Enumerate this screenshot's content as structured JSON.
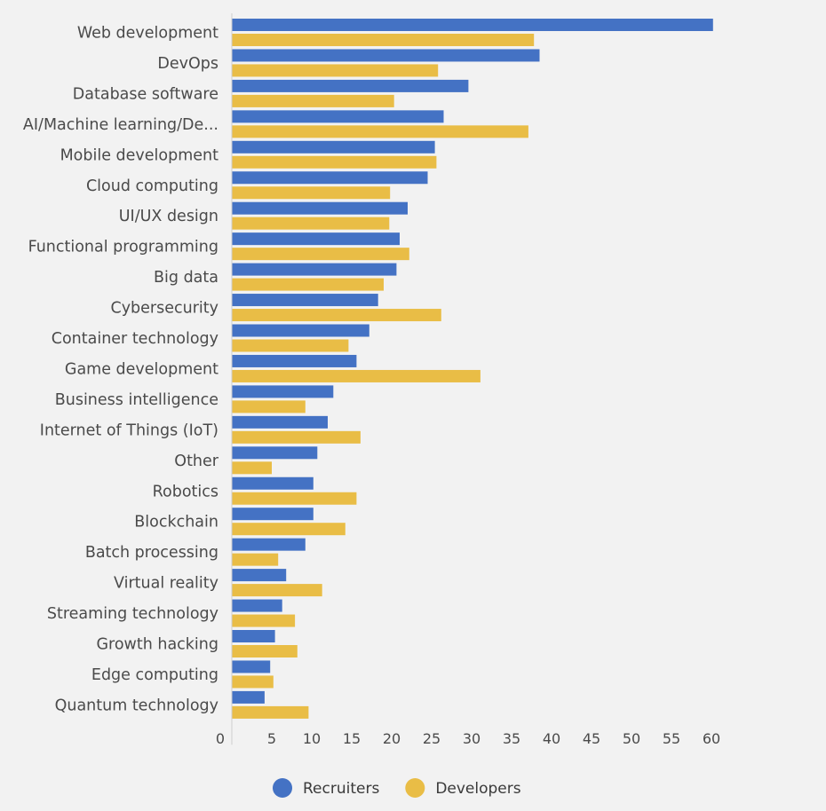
{
  "chart_data": {
    "type": "bar",
    "orientation": "horizontal",
    "categories": [
      "Web development",
      "DevOps",
      "Database software",
      "AI/Machine learning/De...",
      "Mobile development",
      "Cloud computing",
      "UI/UX design",
      "Functional programming",
      "Big data",
      "Cybersecurity",
      "Container technology",
      "Game development",
      "Business intelligence",
      "Internet of Things (IoT)",
      "Other",
      "Robotics",
      "Blockchain",
      "Batch processing",
      "Virtual reality",
      "Streaming technology",
      "Growth hacking",
      "Edge computing",
      "Quantum technology"
    ],
    "series": [
      {
        "name": "Recruiters",
        "color": "#4472c4",
        "values": [
          60.2,
          38.5,
          29.6,
          26.5,
          25.4,
          24.5,
          22,
          21,
          20.6,
          18.3,
          17.2,
          15.6,
          12.7,
          12,
          10.7,
          10.2,
          10.2,
          9.2,
          6.8,
          6.3,
          5.4,
          4.8,
          4.1
        ]
      },
      {
        "name": "Developers",
        "color": "#e9bd46",
        "values": [
          37.8,
          25.8,
          20.3,
          37.1,
          25.6,
          19.8,
          19.7,
          22.2,
          19,
          26.2,
          14.6,
          31.1,
          9.2,
          16.1,
          5,
          15.6,
          14.2,
          5.8,
          11.3,
          7.9,
          8.2,
          5.2,
          9.6
        ]
      }
    ],
    "x_ticks": [
      0,
      5,
      10,
      15,
      20,
      25,
      30,
      35,
      40,
      45,
      50,
      55,
      60
    ],
    "xlim": [
      0,
      62
    ],
    "title": "",
    "xlabel": "",
    "ylabel": "",
    "grid": false,
    "legend_position": "bottom-center"
  }
}
